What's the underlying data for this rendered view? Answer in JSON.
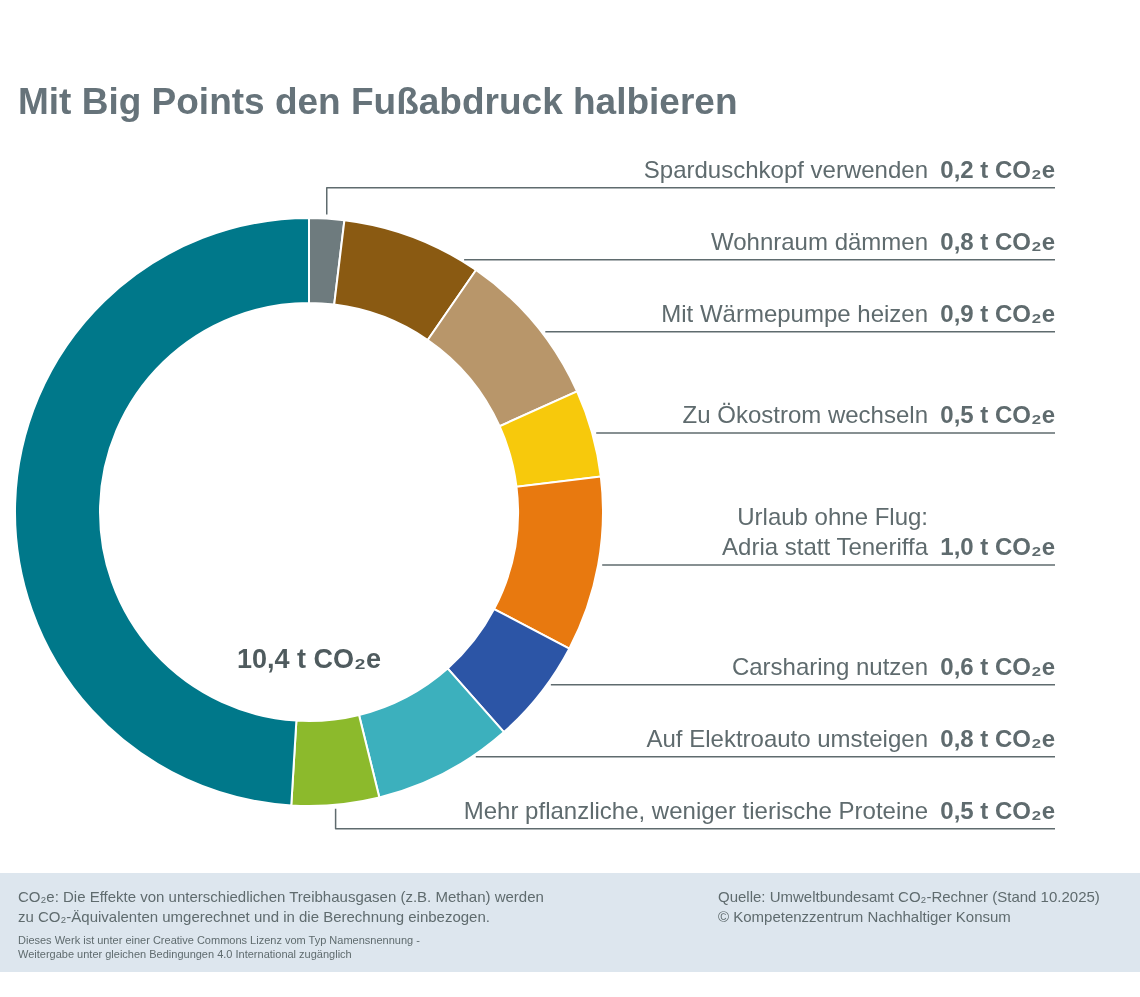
{
  "chart_data": {
    "type": "donut",
    "title": "Mit Big Points den Fußabdruck halbieren",
    "categories": [
      "Sparduschkopf verwenden",
      "Wohnraum dämmen",
      "Mit Wärmepumpe heizen",
      "Zu Ökostrom wechseln",
      "Urlaub ohne Flug:\nAdria statt Teneriffa",
      "Carsharing nutzen",
      "Auf Elektroauto umsteigen",
      "Mehr pflanzliche, weniger tierische Proteine",
      null
    ],
    "values": [
      0.2,
      0.8,
      0.9,
      0.5,
      1.0,
      0.6,
      0.8,
      0.5,
      5.1
    ],
    "colors": [
      "#6e7b7e",
      "#8a5a12",
      "#b8966a",
      "#f7c90c",
      "#e8790f",
      "#2c55a6",
      "#3cb0bd",
      "#8cba2c",
      "#00788a"
    ],
    "value_labels": [
      "0,2 t CO₂e",
      "0,8 t CO₂e",
      "0,9 t CO₂e",
      "0,5 t CO₂e",
      "1,0 t CO₂e",
      "0,6 t CO₂e",
      "0,8 t CO₂e",
      "0,5 t CO₂e",
      null
    ],
    "annotations": [
      "10,4 t CO₂e",
      "CO₂e: Die Effekte von unterschiedlichen Treibhausgasen (z.B. Methan) werden\nzu CO₂-Äquivalenten umgerechnet und in die Berechnung einbezogen.",
      "Quelle: Umweltbundesamt CO₂-Rechner (Stand 10.2025)\n© Kompetenzzentrum Nachhaltiger Konsum",
      "Dieses Werk ist unter einer Creative Commons Lizenz vom Typ Namensnennung -\nWeitergabe unter gleichen Bedingungen 4.0 International zugänglich"
    ]
  }
}
